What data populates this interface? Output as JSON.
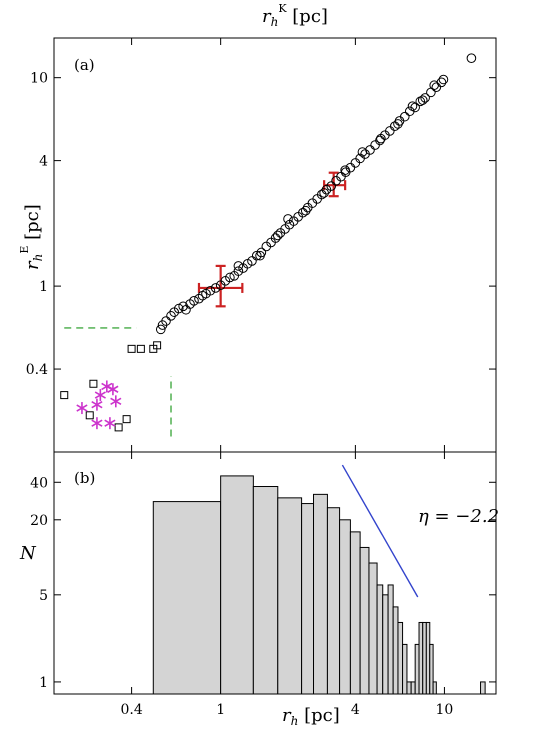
{
  "chart_data": [
    {
      "panel": "(a)",
      "type": "scatter",
      "top_label": "r_h^K [pc]",
      "ylabel": "r_h^E [pc]",
      "xscale": "log",
      "yscale": "log",
      "xlim": [
        0.18,
        17
      ],
      "ylim": [
        0.16,
        15.5
      ],
      "yticks": [
        0.4,
        1,
        4,
        10
      ],
      "series": [
        {
          "marker": "circle",
          "color": "#000000",
          "points": [
            [
              0.54,
              0.62
            ],
            [
              0.55,
              0.65
            ],
            [
              0.57,
              0.68
            ],
            [
              0.6,
              0.72
            ],
            [
              0.62,
              0.75
            ],
            [
              0.65,
              0.78
            ],
            [
              0.68,
              0.8
            ],
            [
              0.7,
              0.77
            ],
            [
              0.73,
              0.82
            ],
            [
              0.76,
              0.85
            ],
            [
              0.8,
              0.87
            ],
            [
              0.83,
              0.9
            ],
            [
              0.86,
              0.92
            ],
            [
              0.9,
              0.95
            ],
            [
              0.95,
              0.98
            ],
            [
              1.0,
              1.01
            ],
            [
              1.05,
              1.06
            ],
            [
              1.1,
              1.1
            ],
            [
              1.15,
              1.12
            ],
            [
              1.2,
              1.18
            ],
            [
              1.26,
              1.22
            ],
            [
              1.32,
              1.28
            ],
            [
              1.38,
              1.32
            ],
            [
              1.45,
              1.4
            ],
            [
              1.52,
              1.45
            ],
            [
              1.6,
              1.55
            ],
            [
              1.68,
              1.62
            ],
            [
              1.76,
              1.7
            ],
            [
              1.85,
              1.8
            ],
            [
              1.94,
              1.88
            ],
            [
              2.03,
              1.97
            ],
            [
              2.12,
              2.05
            ],
            [
              2.22,
              2.15
            ],
            [
              2.33,
              2.25
            ],
            [
              2.45,
              2.38
            ],
            [
              2.57,
              2.5
            ],
            [
              2.7,
              2.62
            ],
            [
              2.83,
              2.75
            ],
            [
              2.97,
              2.9
            ],
            [
              3.12,
              3.02
            ],
            [
              3.28,
              3.2
            ],
            [
              3.45,
              3.35
            ],
            [
              3.62,
              3.52
            ],
            [
              3.8,
              3.7
            ],
            [
              4.0,
              3.9
            ],
            [
              4.2,
              4.1
            ],
            [
              4.42,
              4.3
            ],
            [
              4.65,
              4.5
            ],
            [
              4.9,
              4.75
            ],
            [
              5.15,
              5.0
            ],
            [
              5.42,
              5.3
            ],
            [
              5.7,
              5.55
            ],
            [
              6.0,
              5.85
            ],
            [
              6.3,
              6.2
            ],
            [
              6.65,
              6.5
            ],
            [
              7.0,
              6.9
            ],
            [
              7.4,
              7.2
            ],
            [
              7.8,
              7.7
            ],
            [
              8.2,
              8.0
            ],
            [
              8.7,
              8.5
            ],
            [
              9.2,
              9.0
            ],
            [
              9.7,
              9.5
            ],
            [
              13.2,
              12.4
            ],
            [
              1.2,
              1.25
            ],
            [
              1.5,
              1.4
            ],
            [
              1.8,
              1.75
            ],
            [
              2.0,
              2.1
            ],
            [
              2.4,
              2.3
            ],
            [
              2.9,
              2.8
            ],
            [
              3.6,
              3.6
            ],
            [
              4.3,
              4.4
            ],
            [
              5.2,
              5.1
            ],
            [
              6.2,
              6.0
            ],
            [
              7.2,
              7.3
            ],
            [
              8.0,
              7.8
            ],
            [
              9.0,
              9.2
            ],
            [
              9.9,
              9.8
            ]
          ]
        },
        {
          "marker": "square",
          "color": "#000000",
          "points": [
            [
              0.2,
              0.3
            ],
            [
              0.27,
              0.34
            ],
            [
              0.26,
              0.24
            ],
            [
              0.35,
              0.21
            ],
            [
              0.38,
              0.23
            ],
            [
              0.4,
              0.5
            ],
            [
              0.44,
              0.5
            ],
            [
              0.5,
              0.5
            ],
            [
              0.52,
              0.52
            ]
          ]
        },
        {
          "marker": "asterisk",
          "color": "#cc33cc",
          "points": [
            [
              0.24,
              0.26
            ],
            [
              0.28,
              0.27
            ],
            [
              0.29,
              0.3
            ],
            [
              0.31,
              0.33
            ],
            [
              0.33,
              0.32
            ],
            [
              0.34,
              0.28
            ],
            [
              0.28,
              0.22
            ],
            [
              0.32,
              0.22
            ]
          ]
        }
      ],
      "errorbars": [
        {
          "x": 1.0,
          "y": 0.98,
          "xerr": [
            0.8,
            1.25
          ],
          "yerr": [
            0.8,
            1.25
          ],
          "color": "#cc2222"
        },
        {
          "x": 3.2,
          "y": 3.05,
          "xerr": [
            2.9,
            3.6
          ],
          "yerr": [
            2.7,
            3.5
          ],
          "color": "#cc2222"
        }
      ],
      "guide_lines": [
        {
          "style": "dashed",
          "color": "#44aa44",
          "from": [
            0.2,
            0.63
          ],
          "to": [
            0.42,
            0.63
          ]
        },
        {
          "style": "dashed",
          "color": "#44aa44",
          "from": [
            0.6,
            0.19
          ],
          "to": [
            0.6,
            0.37
          ]
        }
      ]
    },
    {
      "panel": "(b)",
      "type": "bar",
      "xlabel": "r_h [pc]",
      "ylabel": "N",
      "xscale": "log",
      "yscale": "log",
      "xlim": [
        0.18,
        17
      ],
      "ylim": [
        0.8,
        70
      ],
      "xticks": [
        0.4,
        1,
        4,
        10
      ],
      "yticks": [
        1,
        5,
        20,
        40
      ],
      "bins": [
        {
          "left": 0.5,
          "right": 1.0,
          "count": 28
        },
        {
          "left": 1.0,
          "right": 1.4,
          "count": 45
        },
        {
          "left": 1.4,
          "right": 1.8,
          "count": 37
        },
        {
          "left": 1.8,
          "right": 2.3,
          "count": 30
        },
        {
          "left": 2.3,
          "right": 2.6,
          "count": 27
        },
        {
          "left": 2.6,
          "right": 3.0,
          "count": 32
        },
        {
          "left": 3.0,
          "right": 3.4,
          "count": 25
        },
        {
          "left": 3.4,
          "right": 3.8,
          "count": 20
        },
        {
          "left": 3.8,
          "right": 4.2,
          "count": 16
        },
        {
          "left": 4.2,
          "right": 4.6,
          "count": 12
        },
        {
          "left": 4.6,
          "right": 5.0,
          "count": 9
        },
        {
          "left": 5.0,
          "right": 5.3,
          "count": 6
        },
        {
          "left": 5.3,
          "right": 5.6,
          "count": 5
        },
        {
          "left": 5.6,
          "right": 5.9,
          "count": 6
        },
        {
          "left": 5.9,
          "right": 6.2,
          "count": 4
        },
        {
          "left": 6.2,
          "right": 6.5,
          "count": 3
        },
        {
          "left": 6.5,
          "right": 6.8,
          "count": 2
        },
        {
          "left": 6.8,
          "right": 7.1,
          "count": 1
        },
        {
          "left": 7.1,
          "right": 7.4,
          "count": 1
        },
        {
          "left": 7.4,
          "right": 7.7,
          "count": 2
        },
        {
          "left": 7.7,
          "right": 8.0,
          "count": 3
        },
        {
          "left": 8.0,
          "right": 8.3,
          "count": 3
        },
        {
          "left": 8.3,
          "right": 8.6,
          "count": 3
        },
        {
          "left": 8.6,
          "right": 8.9,
          "count": 2
        },
        {
          "left": 8.9,
          "right": 9.2,
          "count": 1
        },
        {
          "left": 14.5,
          "right": 15.2,
          "count": 1
        }
      ],
      "fit_line": {
        "color": "#3344cc",
        "from": [
          3.5,
          55
        ],
        "to": [
          7.6,
          4.8
        ]
      },
      "annotation": "η = −2.2",
      "fill_color": "#d4d4d4"
    }
  ]
}
